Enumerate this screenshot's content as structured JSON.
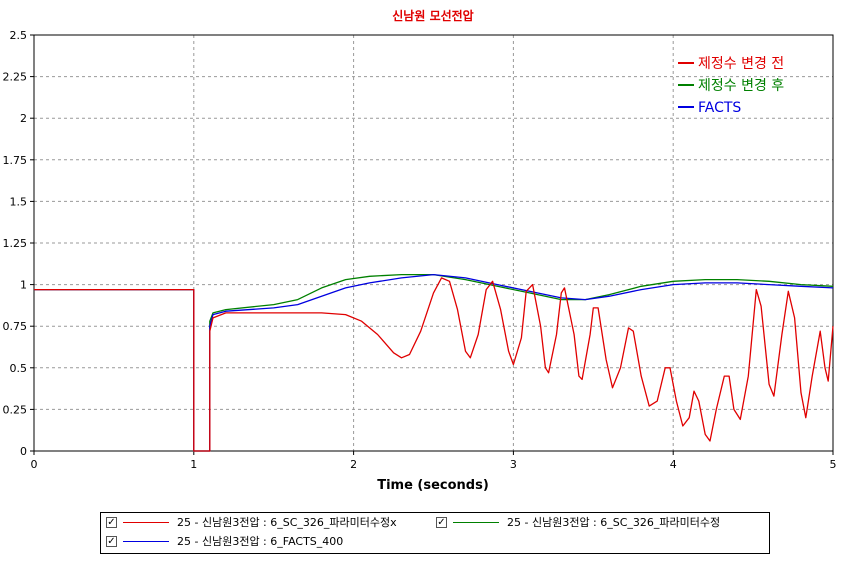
{
  "chart_data": {
    "type": "line",
    "title": "신남원 모선전압",
    "xlabel": "Time (seconds)",
    "ylabel": "",
    "xlim": [
      0,
      5
    ],
    "ylim": [
      0,
      2.5
    ],
    "x_ticks": [
      "0",
      "1",
      "2",
      "3",
      "4",
      "5"
    ],
    "y_ticks": [
      "0",
      "0.25",
      "0.5",
      "0.75",
      "1",
      "1.25",
      "1.5",
      "1.75",
      "2",
      "2.25",
      "2.5"
    ],
    "grid": true,
    "legend_position": "top-right",
    "series": [
      {
        "name": "제정수 변경 전",
        "color": "#e00000",
        "points": [
          [
            0,
            0.97
          ],
          [
            1.0,
            0.97
          ],
          [
            1.0,
            0.0
          ],
          [
            1.1,
            0.0
          ],
          [
            1.1,
            0.72
          ],
          [
            1.12,
            0.8
          ],
          [
            1.2,
            0.83
          ],
          [
            1.5,
            0.83
          ],
          [
            1.8,
            0.83
          ],
          [
            1.95,
            0.82
          ],
          [
            2.05,
            0.78
          ],
          [
            2.15,
            0.7
          ],
          [
            2.25,
            0.59
          ],
          [
            2.3,
            0.56
          ],
          [
            2.35,
            0.58
          ],
          [
            2.42,
            0.72
          ],
          [
            2.5,
            0.95
          ],
          [
            2.55,
            1.04
          ],
          [
            2.6,
            1.02
          ],
          [
            2.65,
            0.85
          ],
          [
            2.7,
            0.6
          ],
          [
            2.73,
            0.56
          ],
          [
            2.78,
            0.7
          ],
          [
            2.83,
            0.97
          ],
          [
            2.87,
            1.02
          ],
          [
            2.92,
            0.85
          ],
          [
            2.97,
            0.6
          ],
          [
            3.0,
            0.52
          ],
          [
            3.05,
            0.68
          ],
          [
            3.08,
            0.96
          ],
          [
            3.12,
            1.0
          ],
          [
            3.17,
            0.75
          ],
          [
            3.2,
            0.5
          ],
          [
            3.22,
            0.47
          ],
          [
            3.27,
            0.7
          ],
          [
            3.3,
            0.95
          ],
          [
            3.32,
            0.98
          ],
          [
            3.38,
            0.7
          ],
          [
            3.41,
            0.45
          ],
          [
            3.43,
            0.43
          ],
          [
            3.48,
            0.7
          ],
          [
            3.5,
            0.86
          ],
          [
            3.53,
            0.86
          ],
          [
            3.58,
            0.55
          ],
          [
            3.62,
            0.38
          ],
          [
            3.67,
            0.5
          ],
          [
            3.72,
            0.74
          ],
          [
            3.75,
            0.72
          ],
          [
            3.8,
            0.45
          ],
          [
            3.85,
            0.27
          ],
          [
            3.9,
            0.3
          ],
          [
            3.95,
            0.5
          ],
          [
            3.98,
            0.5
          ],
          [
            4.02,
            0.3
          ],
          [
            4.06,
            0.15
          ],
          [
            4.1,
            0.2
          ],
          [
            4.13,
            0.36
          ],
          [
            4.16,
            0.3
          ],
          [
            4.2,
            0.1
          ],
          [
            4.23,
            0.06
          ],
          [
            4.27,
            0.25
          ],
          [
            4.32,
            0.45
          ],
          [
            4.35,
            0.45
          ],
          [
            4.38,
            0.25
          ],
          [
            4.42,
            0.19
          ],
          [
            4.47,
            0.45
          ],
          [
            4.52,
            0.97
          ],
          [
            4.55,
            0.87
          ],
          [
            4.6,
            0.4
          ],
          [
            4.63,
            0.33
          ],
          [
            4.68,
            0.7
          ],
          [
            4.72,
            0.96
          ],
          [
            4.76,
            0.8
          ],
          [
            4.8,
            0.35
          ],
          [
            4.83,
            0.2
          ],
          [
            4.87,
            0.45
          ],
          [
            4.92,
            0.72
          ],
          [
            4.95,
            0.5
          ],
          [
            4.97,
            0.42
          ],
          [
            5.0,
            0.75
          ]
        ]
      },
      {
        "name": "제정수 변경 후",
        "color": "#008000",
        "points": [
          [
            0,
            0.97
          ],
          [
            1.0,
            0.97
          ],
          [
            1.0,
            0.0
          ],
          [
            1.1,
            0.0
          ],
          [
            1.1,
            0.78
          ],
          [
            1.12,
            0.83
          ],
          [
            1.2,
            0.85
          ],
          [
            1.5,
            0.88
          ],
          [
            1.65,
            0.91
          ],
          [
            1.8,
            0.98
          ],
          [
            1.95,
            1.03
          ],
          [
            2.1,
            1.05
          ],
          [
            2.3,
            1.06
          ],
          [
            2.5,
            1.06
          ],
          [
            2.7,
            1.03
          ],
          [
            2.9,
            0.99
          ],
          [
            3.1,
            0.95
          ],
          [
            3.3,
            0.91
          ],
          [
            3.45,
            0.91
          ],
          [
            3.6,
            0.94
          ],
          [
            3.8,
            0.99
          ],
          [
            4.0,
            1.02
          ],
          [
            4.2,
            1.03
          ],
          [
            4.4,
            1.03
          ],
          [
            4.6,
            1.02
          ],
          [
            4.8,
            1.0
          ],
          [
            5.0,
            0.99
          ]
        ]
      },
      {
        "name": "FACTS",
        "color": "#0000e0",
        "points": [
          [
            0,
            0.97
          ],
          [
            1.0,
            0.97
          ],
          [
            1.0,
            0.0
          ],
          [
            1.1,
            0.0
          ],
          [
            1.1,
            0.75
          ],
          [
            1.12,
            0.82
          ],
          [
            1.2,
            0.84
          ],
          [
            1.5,
            0.86
          ],
          [
            1.65,
            0.88
          ],
          [
            1.8,
            0.93
          ],
          [
            1.95,
            0.98
          ],
          [
            2.1,
            1.01
          ],
          [
            2.3,
            1.04
          ],
          [
            2.5,
            1.06
          ],
          [
            2.7,
            1.04
          ],
          [
            2.9,
            1.0
          ],
          [
            3.1,
            0.96
          ],
          [
            3.3,
            0.92
          ],
          [
            3.45,
            0.91
          ],
          [
            3.6,
            0.93
          ],
          [
            3.8,
            0.97
          ],
          [
            4.0,
            1.0
          ],
          [
            4.2,
            1.01
          ],
          [
            4.4,
            1.01
          ],
          [
            4.6,
            1.0
          ],
          [
            4.8,
            0.99
          ],
          [
            5.0,
            0.98
          ]
        ]
      }
    ]
  },
  "bottom_legend": [
    {
      "checked": "✓",
      "label": "25 - 신남원3전압 : 6_SC_326_파라미터수정x",
      "color": "#e00000"
    },
    {
      "checked": "✓",
      "label": "25 - 신남원3전압 : 6_SC_326_파라미터수정",
      "color": "#008000"
    },
    {
      "checked": "✓",
      "label": "25 - 신남원3전압 : 6_FACTS_400",
      "color": "#0000e0"
    }
  ]
}
